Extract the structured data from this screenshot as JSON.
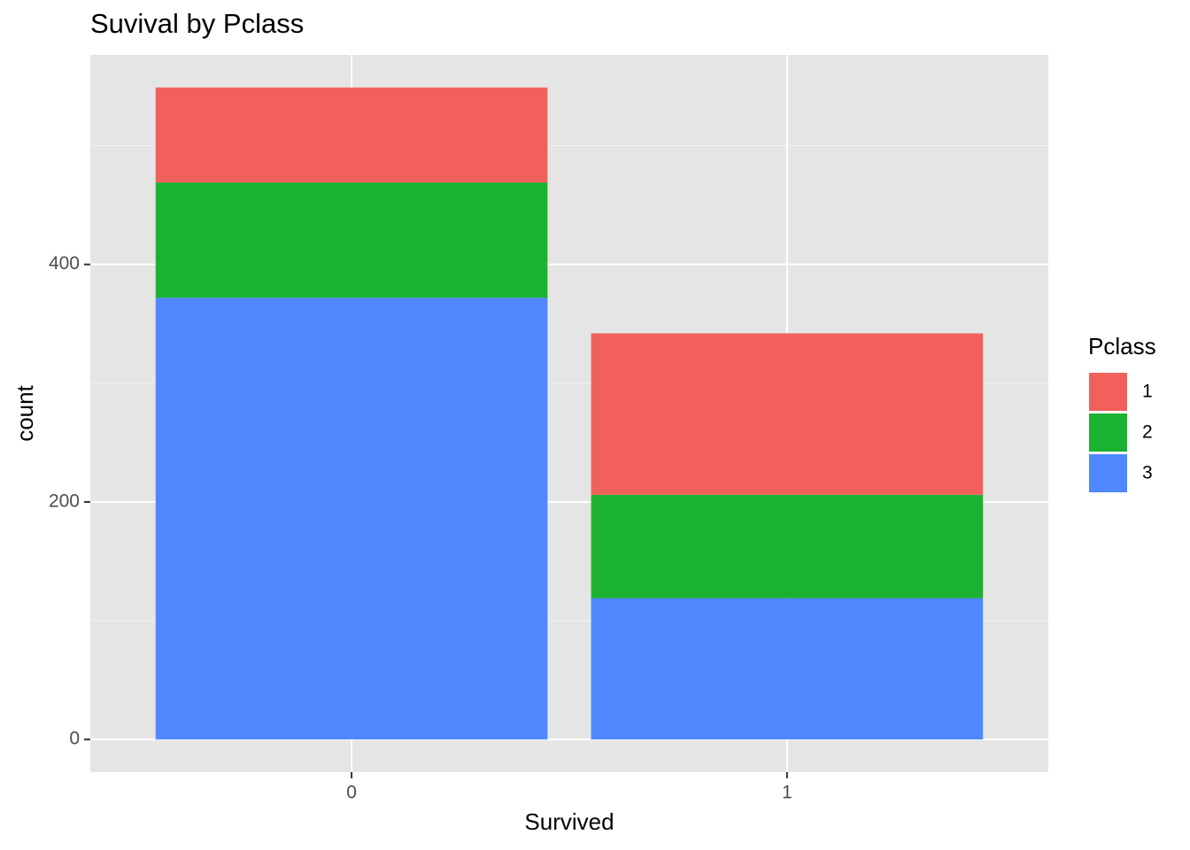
{
  "chart_data": {
    "type": "stacked-bar",
    "title": "Suvival by Pclass",
    "x_label": "Survived",
    "y_label": "count",
    "categories": [
      "0",
      "1"
    ],
    "legend_title": "Pclass",
    "series": [
      {
        "name": "1",
        "color": "#f2605c",
        "values": [
          80,
          136
        ]
      },
      {
        "name": "2",
        "color": "#1bb232",
        "values": [
          97,
          87
        ]
      },
      {
        "name": "3",
        "color": "#4f87ff",
        "values": [
          372,
          119
        ]
      }
    ],
    "ylim": [
      -27.45,
      576.45
    ],
    "yticks": [
      0,
      200,
      400
    ],
    "minor_yticks": [
      100,
      300,
      500
    ],
    "grid": true,
    "legend": "right"
  }
}
